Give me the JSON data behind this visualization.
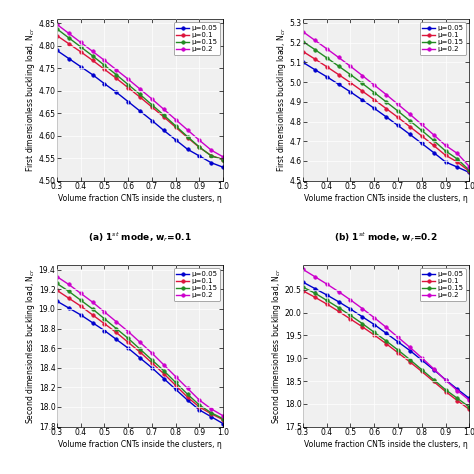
{
  "x": [
    0.3,
    0.35,
    0.4,
    0.45,
    0.5,
    0.55,
    0.6,
    0.65,
    0.7,
    0.75,
    0.8,
    0.85,
    0.9,
    0.95,
    1.0
  ],
  "subplot_a": {
    "title": "(a) 1$^{st}$ mode, w$_r$=0.1",
    "ylabel": "First dimensionless buckling load, N$_{cr}$",
    "xlabel": "Volume fraction CNTs inside the clusters, η",
    "ylim": [
      4.5,
      4.86
    ],
    "yticks": [
      4.5,
      4.55,
      4.6,
      4.65,
      4.7,
      4.75,
      4.8,
      4.85
    ],
    "xticks": [
      0.3,
      0.4,
      0.5,
      0.6,
      0.7,
      0.8,
      0.9,
      1.0
    ],
    "series": {
      "mu005": [
        4.79,
        4.772,
        4.754,
        4.736,
        4.716,
        4.697,
        4.676,
        4.655,
        4.634,
        4.612,
        4.591,
        4.57,
        4.555,
        4.54,
        4.53
      ],
      "mu010": [
        4.823,
        4.805,
        4.787,
        4.768,
        4.748,
        4.728,
        4.707,
        4.686,
        4.664,
        4.642,
        4.619,
        4.596,
        4.574,
        4.556,
        4.547
      ],
      "mu015": [
        4.838,
        4.818,
        4.798,
        4.778,
        4.757,
        4.736,
        4.714,
        4.692,
        4.669,
        4.646,
        4.622,
        4.598,
        4.575,
        4.555,
        4.547
      ],
      "mu020": [
        4.848,
        4.828,
        4.808,
        4.788,
        4.768,
        4.747,
        4.726,
        4.704,
        4.682,
        4.659,
        4.636,
        4.613,
        4.59,
        4.568,
        4.553
      ]
    }
  },
  "subplot_b": {
    "title": "(b) 1$^{st}$ mode, w$_r$=0.2",
    "ylabel": "First dimensionless buckling load, N$_{cr}$",
    "xlabel": "Volume fraction CNTs inside the clusters, η",
    "ylim": [
      4.5,
      5.32
    ],
    "yticks": [
      4.5,
      4.6,
      4.7,
      4.8,
      4.9,
      5.0,
      5.1,
      5.2,
      5.3
    ],
    "xticks": [
      0.3,
      0.4,
      0.5,
      0.6,
      0.7,
      0.8,
      0.9,
      1.0
    ],
    "series": {
      "mu005": [
        5.1,
        5.063,
        5.027,
        4.989,
        4.95,
        4.909,
        4.867,
        4.824,
        4.78,
        4.735,
        4.689,
        4.643,
        4.595,
        4.569,
        4.542
      ],
      "mu010": [
        5.155,
        5.117,
        5.078,
        5.038,
        4.997,
        4.954,
        4.911,
        4.866,
        4.821,
        4.774,
        4.727,
        4.679,
        4.629,
        4.595,
        4.548
      ],
      "mu015": [
        5.205,
        5.165,
        5.123,
        5.081,
        5.038,
        4.993,
        4.947,
        4.9,
        4.853,
        4.804,
        4.755,
        4.704,
        4.651,
        4.61,
        4.553
      ],
      "mu020": [
        5.255,
        5.212,
        5.169,
        5.125,
        5.08,
        5.033,
        4.985,
        4.937,
        4.887,
        4.837,
        4.785,
        4.733,
        4.679,
        4.638,
        4.572
      ]
    }
  },
  "subplot_c": {
    "title": "(c) 2$^{nd}$ mode, w$_r$=0.1",
    "ylabel": "Second dimensionless buckling load, N$_{cr}$",
    "xlabel": "Volume fraction CNTs inside the clusters, η",
    "ylim": [
      17.8,
      19.45
    ],
    "yticks": [
      17.8,
      18.0,
      18.2,
      18.4,
      18.6,
      18.8,
      19.0,
      19.2,
      19.4
    ],
    "xticks": [
      0.3,
      0.4,
      0.5,
      0.6,
      0.7,
      0.8,
      0.9,
      1.0
    ],
    "series": {
      "mu005": [
        19.08,
        19.01,
        18.94,
        18.86,
        18.78,
        18.69,
        18.6,
        18.5,
        18.4,
        18.29,
        18.18,
        18.07,
        17.97,
        17.9,
        17.83
      ],
      "mu010": [
        19.19,
        19.11,
        19.03,
        18.94,
        18.85,
        18.76,
        18.66,
        18.56,
        18.45,
        18.34,
        18.22,
        18.1,
        18.0,
        17.93,
        17.87
      ],
      "mu015": [
        19.26,
        19.18,
        19.09,
        19.0,
        18.9,
        18.8,
        18.7,
        18.59,
        18.48,
        18.37,
        18.25,
        18.13,
        18.02,
        17.94,
        17.88
      ],
      "mu020": [
        19.33,
        19.25,
        19.16,
        19.07,
        18.97,
        18.87,
        18.77,
        18.66,
        18.55,
        18.43,
        18.31,
        18.19,
        18.07,
        17.98,
        17.91
      ]
    }
  },
  "subplot_d": {
    "title": "(d) 2$^{nd}$ mode, w$_r$=0.2",
    "ylabel": "Second dimensionless buckling load, N$_{cr}$",
    "xlabel": "Volume fraction CNTs inside the clusters, η",
    "ylim": [
      17.5,
      21.05
    ],
    "yticks": [
      17.5,
      18.0,
      18.5,
      19.0,
      19.5,
      20.0,
      20.5
    ],
    "xticks": [
      0.3,
      0.4,
      0.5,
      0.6,
      0.7,
      0.8,
      0.9,
      1.0
    ],
    "series": {
      "mu005": [
        20.67,
        20.53,
        20.39,
        20.24,
        20.08,
        19.91,
        19.74,
        19.55,
        19.36,
        19.17,
        18.96,
        18.75,
        18.53,
        18.32,
        18.12
      ],
      "mu010": [
        20.48,
        20.34,
        20.19,
        20.03,
        19.86,
        19.69,
        19.51,
        19.32,
        19.12,
        18.92,
        18.71,
        18.49,
        18.27,
        18.07,
        17.88
      ],
      "mu015": [
        20.56,
        20.43,
        20.27,
        20.11,
        19.94,
        19.76,
        19.57,
        19.38,
        19.18,
        18.97,
        18.75,
        18.53,
        18.31,
        18.12,
        17.93
      ],
      "mu020": [
        20.95,
        20.79,
        20.63,
        20.46,
        20.28,
        20.09,
        19.89,
        19.68,
        19.46,
        19.24,
        19.01,
        18.77,
        18.52,
        18.29,
        18.08
      ]
    }
  },
  "colors": {
    "mu005": "#0000cd",
    "mu010": "#dc143c",
    "mu015": "#228b22",
    "mu020": "#cc00cc"
  },
  "legend_labels": {
    "mu005": "μ=0.05",
    "mu010": "μ=0.1",
    "mu015": "μ=0.15",
    "mu020": "μ=0.2"
  },
  "marker": "o",
  "markersize": 2.5,
  "linewidth": 1.0,
  "bg_color": "#f0f0f0"
}
